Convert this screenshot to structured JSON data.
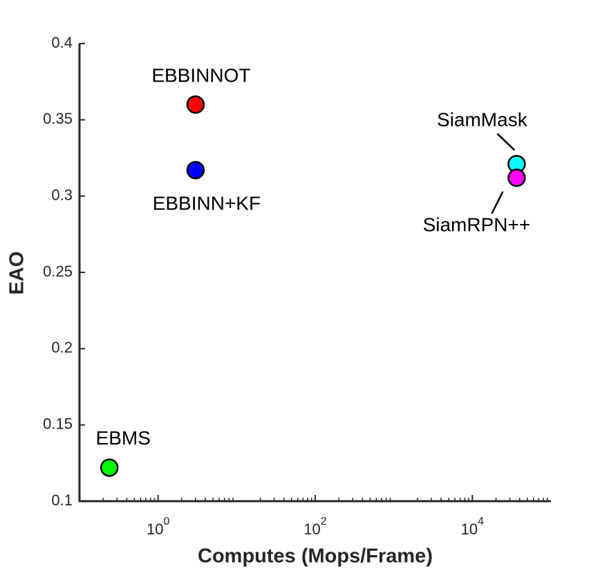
{
  "chart_data": {
    "type": "scatter",
    "xlabel": "Computes (Mops/Frame)",
    "ylabel": "EAO",
    "log_x": true,
    "xlim": [
      0.1,
      100000
    ],
    "xticks": [
      {
        "value": 1,
        "label": "10^0"
      },
      {
        "value": 100,
        "label": "10^2"
      },
      {
        "value": 10000,
        "label": "10^4"
      }
    ],
    "ylim": [
      0.1,
      0.4
    ],
    "yticks": [
      0.1,
      0.15,
      0.2,
      0.25,
      0.3,
      0.35,
      0.4
    ],
    "points": [
      {
        "label": "EBBINNOT",
        "x": 3.0,
        "y": 0.36,
        "color": "#ff0000"
      },
      {
        "label": "EBBINN+KF",
        "x": 3.0,
        "y": 0.317,
        "color": "#0000ff"
      },
      {
        "label": "SiamMask",
        "x": 36600,
        "y": 0.321,
        "color": "#00ffff"
      },
      {
        "label": "SiamRPN++",
        "x": 36600,
        "y": 0.312,
        "color": "#ff00ff"
      },
      {
        "label": "EBMS",
        "x": 0.24,
        "y": 0.122,
        "color": "#00ff00"
      }
    ]
  }
}
